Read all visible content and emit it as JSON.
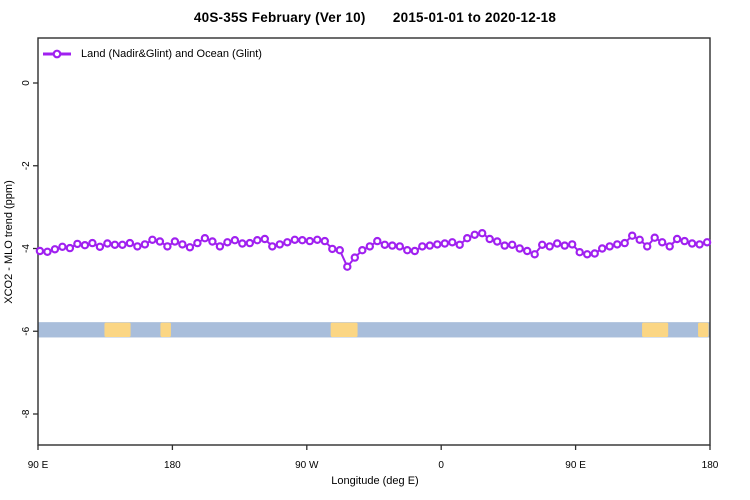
{
  "title": "40S-35S February (Ver 10)  2015-01-01 to 2020-12-18",
  "legend": {
    "label": "Land (Nadir&Glint) and Ocean (Glint)"
  },
  "axes": {
    "xlabel": "Longitude (deg E)",
    "ylabel": "XCO2 - MLO trend (ppm)"
  },
  "colors": {
    "series": "#A020F0",
    "ocean": "#A9BEDB",
    "land": "#FBD684",
    "axis": "#2E2E2E",
    "text": "#000000",
    "background": "#FFFFFF"
  },
  "chart_data": {
    "type": "line",
    "title": "40S-35S February (Ver 10) 2015-01-01 to 2020-12-18",
    "xlabel": "Longitude (deg E)",
    "ylabel": "XCO2 - MLO trend (ppm)",
    "xlim": [
      90,
      540
    ],
    "ylim": [
      -8.75,
      1.09
    ],
    "grid": false,
    "legend_position": "top-left",
    "x_ticks": [
      {
        "lon": 90,
        "label": "90 E"
      },
      {
        "lon": 180,
        "label": "180"
      },
      {
        "lon": 270,
        "label": "90 W"
      },
      {
        "lon": 360,
        "label": "0"
      },
      {
        "lon": 450,
        "label": "90 E"
      },
      {
        "lon": 540,
        "label": "180"
      }
    ],
    "y_ticks": [
      {
        "value": 0,
        "label": "0"
      },
      {
        "value": -2,
        "label": "-2"
      },
      {
        "value": -4,
        "label": "-4"
      },
      {
        "value": -6,
        "label": "-6"
      },
      {
        "value": -8,
        "label": "-8"
      }
    ],
    "series": [
      {
        "name": "Land (Nadir&Glint) and Ocean (Glint)",
        "marker": "open-circle",
        "color": "#A020F0",
        "lon_start": 91.3,
        "lon_step": 5.02,
        "values": [
          -4.06,
          -4.08,
          -4.02,
          -3.96,
          -3.99,
          -3.89,
          -3.92,
          -3.87,
          -3.96,
          -3.88,
          -3.91,
          -3.91,
          -3.87,
          -3.95,
          -3.9,
          -3.79,
          -3.83,
          -3.95,
          -3.83,
          -3.9,
          -3.97,
          -3.87,
          -3.75,
          -3.83,
          -3.95,
          -3.85,
          -3.8,
          -3.88,
          -3.87,
          -3.8,
          -3.77,
          -3.95,
          -3.9,
          -3.85,
          -3.79,
          -3.8,
          -3.82,
          -3.79,
          -3.82,
          -4.01,
          -4.04,
          -4.44,
          -4.22,
          -4.04,
          -3.95,
          -3.82,
          -3.91,
          -3.93,
          -3.95,
          -4.04,
          -4.06,
          -3.95,
          -3.93,
          -3.9,
          -3.88,
          -3.85,
          -3.91,
          -3.75,
          -3.67,
          -3.63,
          -3.77,
          -3.83,
          -3.93,
          -3.91,
          -4.0,
          -4.06,
          -4.14,
          -3.91,
          -3.95,
          -3.88,
          -3.93,
          -3.9,
          -4.09,
          -4.14,
          -4.12,
          -4.0,
          -3.95,
          -3.9,
          -3.87,
          -3.69,
          -3.79,
          -3.95,
          -3.74,
          -3.85,
          -3.95,
          -3.77,
          -3.82,
          -3.88,
          -3.9,
          -3.85
        ]
      }
    ],
    "map_strip": {
      "description": "latitude-band world map strip (ocean with land patches: Australia, New Zealand, South America)",
      "value_top": -5.78,
      "value_bottom": -6.15,
      "ocean_color": "#A9BEDB",
      "land_color": "#FBD684",
      "land_segments_lon": [
        [
          134.5,
          152.0
        ],
        [
          172.0,
          179.0
        ],
        [
          286.0,
          304.0
        ],
        [
          494.5,
          512.0
        ],
        [
          532.0,
          539.0
        ]
      ]
    }
  }
}
